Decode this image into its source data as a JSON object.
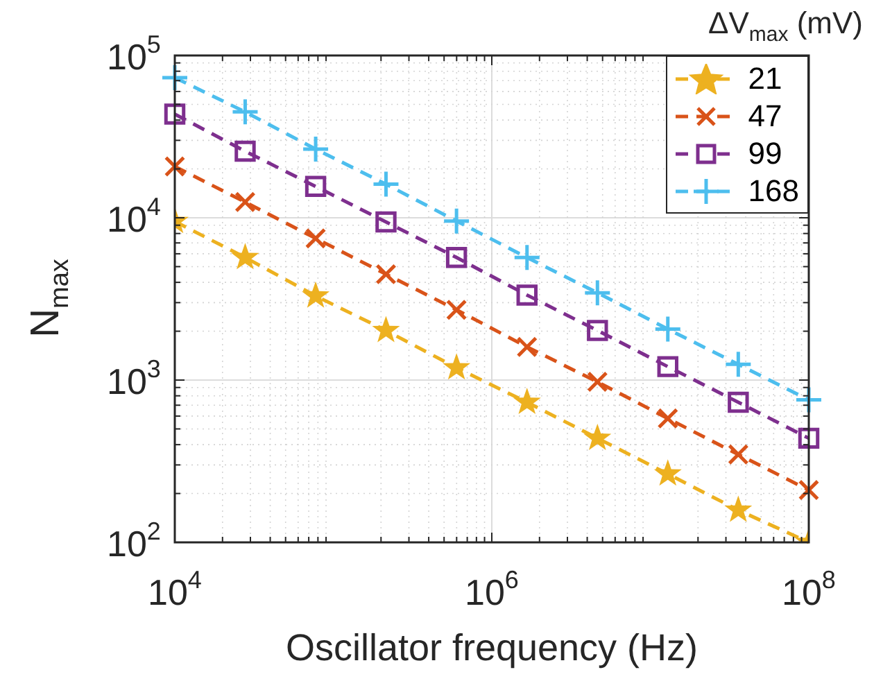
{
  "chart_data": {
    "type": "line",
    "xlabel": "Oscillator frequency (Hz)",
    "ylabel": "N$_{max}$",
    "legend_title": "ΔV$_{max}$ (mV)",
    "x": [
      10000,
      27800,
      77400,
      215000,
      599000,
      1668000,
      4640000,
      12900000,
      35900000,
      100000000
    ],
    "series": [
      {
        "name": "21",
        "color": "#edb120",
        "marker": "star",
        "values": [
          9500,
          5690,
          3300,
          2020,
          1190,
          730,
          438,
          264,
          158,
          100
        ]
      },
      {
        "name": "47",
        "color": "#d95319",
        "marker": "cross",
        "values": [
          20700,
          12500,
          7470,
          4490,
          2710,
          1600,
          975,
          580,
          348,
          210
        ]
      },
      {
        "name": "99",
        "color": "#7e2f8e",
        "marker": "square",
        "values": [
          43500,
          25700,
          15600,
          9420,
          5690,
          3340,
          2020,
          1210,
          730,
          438
        ]
      },
      {
        "name": "168",
        "color": "#4dbeee",
        "marker": "plus",
        "values": [
          73000,
          44900,
          26500,
          16100,
          9550,
          5690,
          3450,
          2060,
          1250,
          755
        ]
      }
    ],
    "log": "xy",
    "xlim": [
      10000,
      100000000
    ],
    "ylim": [
      100,
      100000
    ],
    "xticks": [
      {
        "value": 10000,
        "label": "10$^{4}$"
      },
      {
        "value": 1000000,
        "label": "10$^{6}$"
      },
      {
        "value": 100000000,
        "label": "10$^{8}$"
      }
    ],
    "yticks": [
      {
        "value": 100,
        "label": "10$^{2}$"
      },
      {
        "value": 1000,
        "label": "10$^{3}$"
      },
      {
        "value": 10000,
        "label": "10$^{4}$"
      },
      {
        "value": 100000,
        "label": "10$^{5}$"
      }
    ],
    "grid": true,
    "legend": "top right",
    "line_style": "dashed"
  }
}
